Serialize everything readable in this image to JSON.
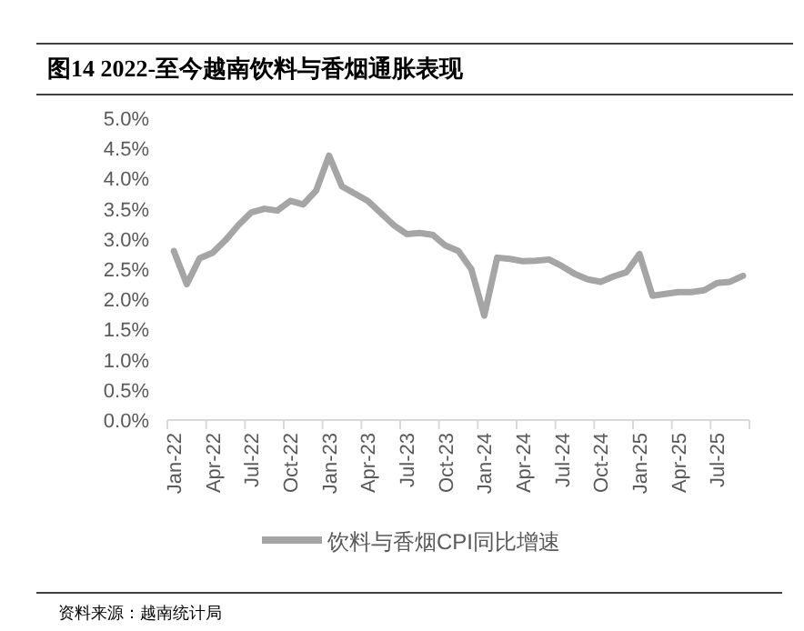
{
  "chart_data": {
    "type": "line",
    "title": "图14  2022-至今越南饮料与香烟通胀表现",
    "categories": [
      "Jan-22",
      null,
      null,
      "Apr-22",
      null,
      null,
      "Jul-22",
      null,
      null,
      "Oct-22",
      null,
      null,
      "Jan-23",
      null,
      null,
      "Apr-23",
      null,
      null,
      "Jul-23",
      null,
      null,
      "Oct-23",
      null,
      null,
      "Jan-24",
      null,
      null,
      "Apr-24",
      null,
      null,
      "Jul-24",
      null,
      null,
      "Oct-24",
      null,
      null,
      "Jan-25",
      null,
      null,
      "Apr-25",
      null,
      null,
      "Jul-25",
      null,
      null
    ],
    "series": [
      {
        "name": "饮料与香烟CPI同比增速",
        "color": "#a5a5a5",
        "values": [
          2.8,
          2.25,
          2.68,
          2.77,
          2.98,
          3.23,
          3.44,
          3.5,
          3.47,
          3.63,
          3.57,
          3.8,
          4.38,
          3.87,
          3.75,
          3.63,
          3.43,
          3.23,
          3.08,
          3.1,
          3.07,
          2.89,
          2.8,
          2.5,
          1.73,
          2.69,
          2.67,
          2.63,
          2.64,
          2.66,
          2.55,
          2.42,
          2.33,
          2.29,
          2.38,
          2.45,
          2.75,
          2.06,
          2.09,
          2.12,
          2.12,
          2.15,
          2.27,
          2.29,
          2.39
        ]
      }
    ],
    "ylim": [
      0,
      5
    ],
    "yticks": [
      {
        "value": 0,
        "label": "0.0%"
      },
      {
        "value": 0.5,
        "label": "0.5%"
      },
      {
        "value": 1,
        "label": "1.0%"
      },
      {
        "value": 1.5,
        "label": "1.5%"
      },
      {
        "value": 2,
        "label": "2.0%"
      },
      {
        "value": 2.5,
        "label": "2.5%"
      },
      {
        "value": 3,
        "label": "3.0%"
      },
      {
        "value": 3.5,
        "label": "3.5%"
      },
      {
        "value": 4,
        "label": "4.0%"
      },
      {
        "value": 4.5,
        "label": "4.5%"
      },
      {
        "value": 5,
        "label": "5.0%"
      }
    ],
    "legend": "bottom",
    "grid": false,
    "marker": "none",
    "line_style": "solid",
    "annotations": [
      "资料来源：越南统计局"
    ]
  }
}
